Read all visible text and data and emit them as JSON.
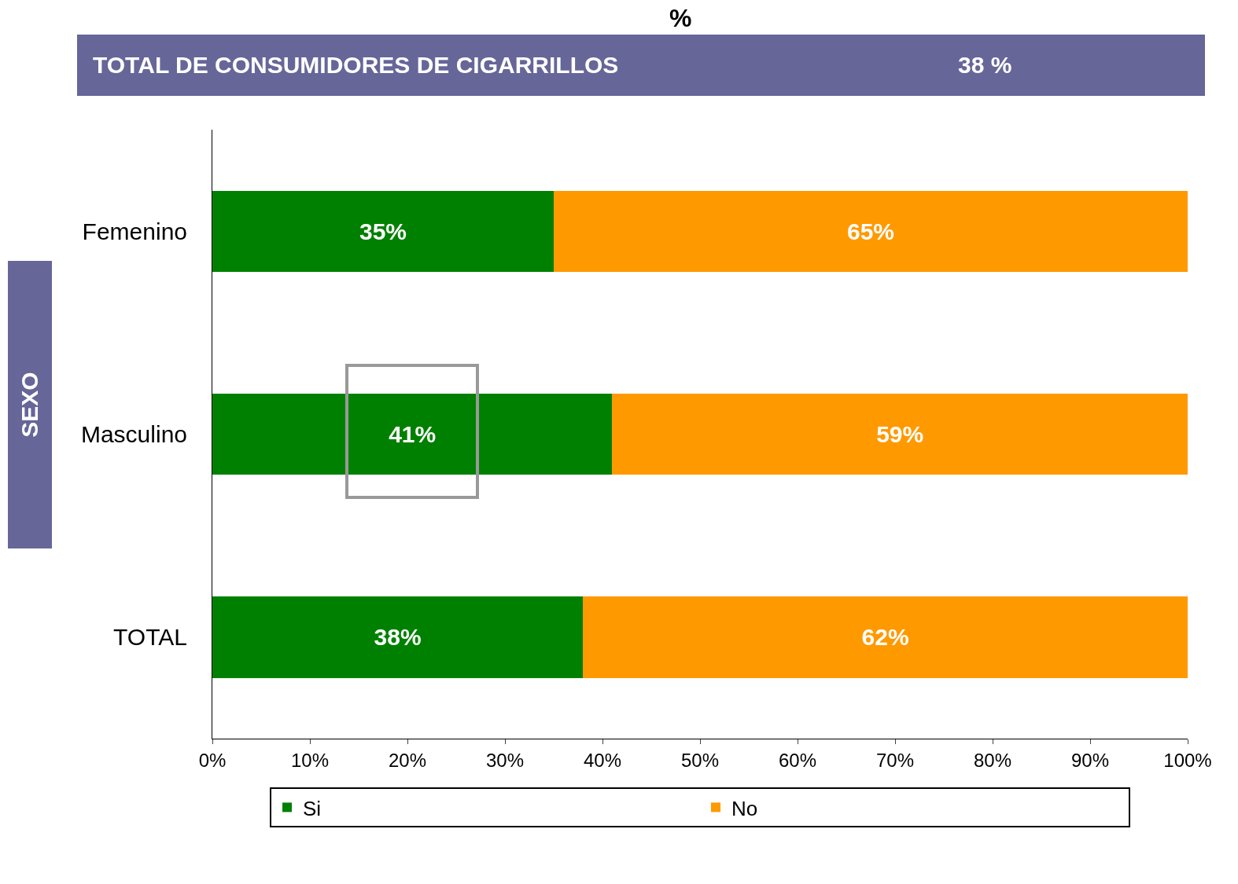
{
  "chart_data": {
    "type": "bar",
    "orientation": "horizontal",
    "stacked": true,
    "title": "%",
    "ylabel": "SEXO",
    "annotations": [
      "TOTAL DE CONSUMIDORES DE CIGARRILLOS",
      "38 %"
    ],
    "categories": [
      "Femenino",
      "Masculino",
      "TOTAL"
    ],
    "series": [
      {
        "name": "Si",
        "color": "#008000",
        "values": [
          35,
          41,
          38
        ],
        "value_labels": [
          "35%",
          "41%",
          "38%"
        ]
      },
      {
        "name": "No",
        "color": "#ff9900",
        "values": [
          65,
          59,
          62
        ],
        "value_labels": [
          "65%",
          "59%",
          "62%"
        ]
      }
    ],
    "xlim": [
      0,
      100
    ],
    "xticks": [
      {
        "value": 0,
        "label": "0%"
      },
      {
        "value": 10,
        "label": "10%"
      },
      {
        "value": 20,
        "label": "20%"
      },
      {
        "value": 30,
        "label": "30%"
      },
      {
        "value": 40,
        "label": "40%"
      },
      {
        "value": 50,
        "label": "50%"
      },
      {
        "value": 60,
        "label": "60%"
      },
      {
        "value": 70,
        "label": "70%"
      },
      {
        "value": 80,
        "label": "80%"
      },
      {
        "value": 90,
        "label": "90%"
      },
      {
        "value": 100,
        "label": "100%"
      }
    ],
    "legend": "bottom"
  }
}
